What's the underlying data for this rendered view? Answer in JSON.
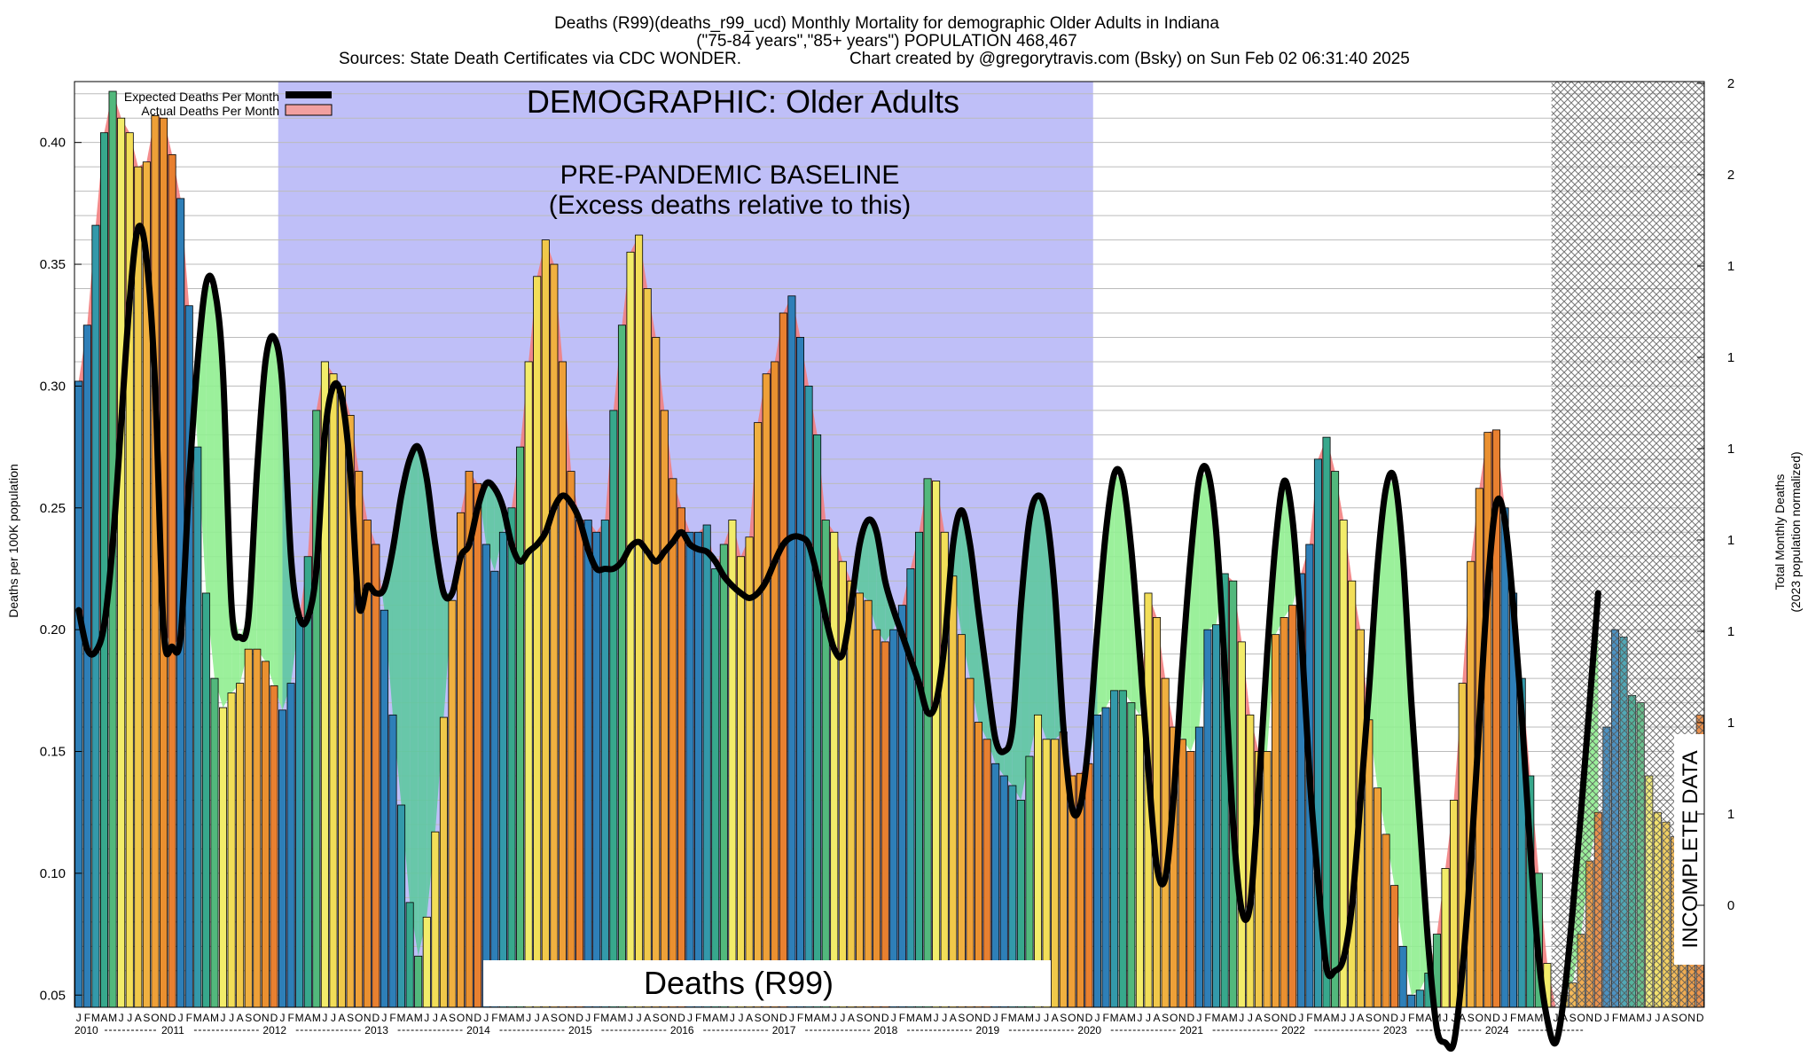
{
  "header": {
    "line1": "Deaths (R99)(deaths_r99_ucd) Monthly Mortality for demographic Older Adults in Indiana",
    "line2": "(\"75-84 years\",\"85+ years\") POPULATION 468,467",
    "line3_sources": "Sources: State Death Certificates via CDC WONDER.",
    "line3_credit": "Chart created by @gregorytravis.com (Bsky) on Sun Feb 02 06:31:40 2025"
  },
  "annotations": {
    "demographic": "DEMOGRAPHIC: Older Adults",
    "baseline_line1": "PRE-PANDEMIC BASELINE",
    "baseline_line2": "(Excess deaths relative to this)",
    "cause_label": "Deaths (R99)",
    "incomplete": "INCOMPLETE DATA"
  },
  "legend": {
    "expected": "Expected Deaths Per Month",
    "actual": "Actual Deaths Per Month"
  },
  "colors": {
    "baseline_region": "#bfbff8",
    "excess_fill": "#f28080",
    "deficit_fill": "#90ee90",
    "overlap_fill": "#5ec8a0",
    "expected_line": "#000000",
    "month_palette": [
      "#2e7fb8",
      "#2e7fb8",
      "#3399aa",
      "#37a88c",
      "#52b87c",
      "#f2ec6a",
      "#f2de58",
      "#f0c84a",
      "#f0b040",
      "#eea038",
      "#ea9030",
      "#e88030"
    ],
    "hatch": "#555555"
  },
  "chart_data": {
    "type": "bar",
    "title": "Deaths (R99)(deaths_r99_ucd) Monthly Mortality for demographic Older Adults in Indiana",
    "ylabel": "Deaths per 100K population",
    "y2label_line1": "Total Monthly Deaths",
    "y2label_line2": "(2023 population normalized)",
    "ylim": [
      0.045,
      0.425
    ],
    "yticks": [
      "0.05",
      "0.10",
      "0.15",
      "0.20",
      "0.25",
      "0.30",
      "0.35",
      "0.40"
    ],
    "y2ticks": [
      "2",
      "2",
      "1",
      "1",
      "1",
      "1",
      "1",
      "1",
      "1",
      "0"
    ],
    "month_letters": [
      "J",
      "F",
      "M",
      "A",
      "M",
      "J",
      "J",
      "A",
      "S",
      "O",
      "N",
      "D"
    ],
    "years": [
      "2010",
      "2011",
      "2012",
      "2013",
      "2014",
      "2015",
      "2016",
      "2017",
      "2018",
      "2019",
      "2020",
      "2021",
      "2022",
      "2023",
      "2024"
    ],
    "baseline_period": [
      "2012-01",
      "2019-12"
    ],
    "incomplete_from": "2024-07",
    "grid": true,
    "legend_position": "top-left",
    "series": [
      {
        "name": "Actual Deaths Per Month",
        "values": [
          0.302,
          0.325,
          0.366,
          0.404,
          0.421,
          0.41,
          0.404,
          0.39,
          0.392,
          0.411,
          0.41,
          0.395,
          0.377,
          0.333,
          0.275,
          0.215,
          0.18,
          0.168,
          0.174,
          0.178,
          0.192,
          0.192,
          0.187,
          0.177,
          0.167,
          0.178,
          0.205,
          0.23,
          0.29,
          0.31,
          0.305,
          0.3,
          0.288,
          0.265,
          0.245,
          0.235,
          0.208,
          0.165,
          0.128,
          0.088,
          0.066,
          0.082,
          0.117,
          0.164,
          0.212,
          0.248,
          0.265,
          0.26,
          0.235,
          0.224,
          0.24,
          0.25,
          0.275,
          0.31,
          0.345,
          0.36,
          0.35,
          0.31,
          0.265,
          0.245,
          0.245,
          0.24,
          0.245,
          0.29,
          0.325,
          0.355,
          0.362,
          0.34,
          0.32,
          0.29,
          0.262,
          0.25,
          0.24,
          0.24,
          0.243,
          0.225,
          0.235,
          0.245,
          0.23,
          0.238,
          0.285,
          0.305,
          0.31,
          0.33,
          0.337,
          0.32,
          0.3,
          0.28,
          0.245,
          0.24,
          0.228,
          0.22,
          0.215,
          0.212,
          0.2,
          0.195,
          0.2,
          0.21,
          0.225,
          0.24,
          0.262,
          0.261,
          0.24,
          0.222,
          0.198,
          0.18,
          0.162,
          0.155,
          0.145,
          0.14,
          0.136,
          0.13,
          0.148,
          0.165,
          0.155,
          0.155,
          0.158,
          0.14,
          0.141,
          0.145,
          0.165,
          0.168,
          0.175,
          0.175,
          0.17,
          0.165,
          0.215,
          0.205,
          0.18,
          0.16,
          0.155,
          0.15,
          0.16,
          0.2,
          0.202,
          0.223,
          0.22,
          0.195,
          0.165,
          0.15,
          0.15,
          0.198,
          0.205,
          0.21,
          0.223,
          0.235,
          0.27,
          0.279,
          0.265,
          0.245,
          0.22,
          0.2,
          0.163,
          0.135,
          0.116,
          0.095,
          0.07,
          0.05,
          0.052,
          0.059,
          0.075,
          0.102,
          0.13,
          0.178,
          0.228,
          0.258,
          0.281,
          0.282,
          0.25,
          0.215,
          0.18,
          0.14,
          0.1,
          0.063,
          0.045,
          0.05,
          0.055,
          0.075,
          0.105,
          0.125,
          0.16,
          0.2,
          0.197,
          0.173,
          0.17,
          0.14,
          0.125,
          0.121,
          0.115,
          0.115,
          0.135,
          0.165
        ]
      },
      {
        "name": "Expected Deaths Per Month",
        "values": [
          0.208,
          0.192,
          0.191,
          0.202,
          0.235,
          0.285,
          0.335,
          0.365,
          0.352,
          0.3,
          0.2,
          0.193,
          0.197,
          0.26,
          0.31,
          0.342,
          0.34,
          0.305,
          0.21,
          0.197,
          0.205,
          0.265,
          0.31,
          0.32,
          0.3,
          0.23,
          0.205,
          0.205,
          0.225,
          0.28,
          0.3,
          0.295,
          0.265,
          0.21,
          0.218,
          0.215,
          0.217,
          0.233,
          0.255,
          0.27,
          0.275,
          0.262,
          0.235,
          0.215,
          0.215,
          0.23,
          0.235,
          0.25,
          0.26,
          0.258,
          0.25,
          0.235,
          0.228,
          0.232,
          0.235,
          0.24,
          0.25,
          0.255,
          0.252,
          0.245,
          0.233,
          0.225,
          0.225,
          0.225,
          0.228,
          0.234,
          0.236,
          0.232,
          0.228,
          0.232,
          0.236,
          0.24,
          0.235,
          0.233,
          0.232,
          0.228,
          0.222,
          0.218,
          0.215,
          0.213,
          0.215,
          0.22,
          0.228,
          0.235,
          0.238,
          0.238,
          0.235,
          0.222,
          0.205,
          0.192,
          0.19,
          0.21,
          0.235,
          0.245,
          0.24,
          0.22,
          0.208,
          0.198,
          0.188,
          0.178,
          0.166,
          0.17,
          0.194,
          0.235,
          0.249,
          0.235,
          0.207,
          0.18,
          0.155,
          0.15,
          0.16,
          0.21,
          0.245,
          0.255,
          0.247,
          0.215,
          0.16,
          0.127,
          0.128,
          0.155,
          0.2,
          0.24,
          0.264,
          0.261,
          0.233,
          0.19,
          0.143,
          0.103,
          0.098,
          0.132,
          0.185,
          0.23,
          0.262,
          0.265,
          0.24,
          0.185,
          0.12,
          0.085,
          0.087,
          0.134,
          0.19,
          0.236,
          0.261,
          0.245,
          0.2,
          0.14,
          0.097,
          0.061,
          0.06,
          0.065,
          0.087,
          0.13,
          0.175,
          0.226,
          0.258,
          0.262,
          0.23,
          0.17,
          0.12,
          0.07,
          0.036,
          0.022,
          0.03,
          0.06,
          0.105,
          0.162,
          0.218,
          0.252,
          0.245,
          0.21,
          0.165,
          0.11,
          0.065,
          0.04,
          0.03,
          0.05,
          0.085,
          0.126,
          0.17,
          0.215
        ]
      }
    ]
  }
}
